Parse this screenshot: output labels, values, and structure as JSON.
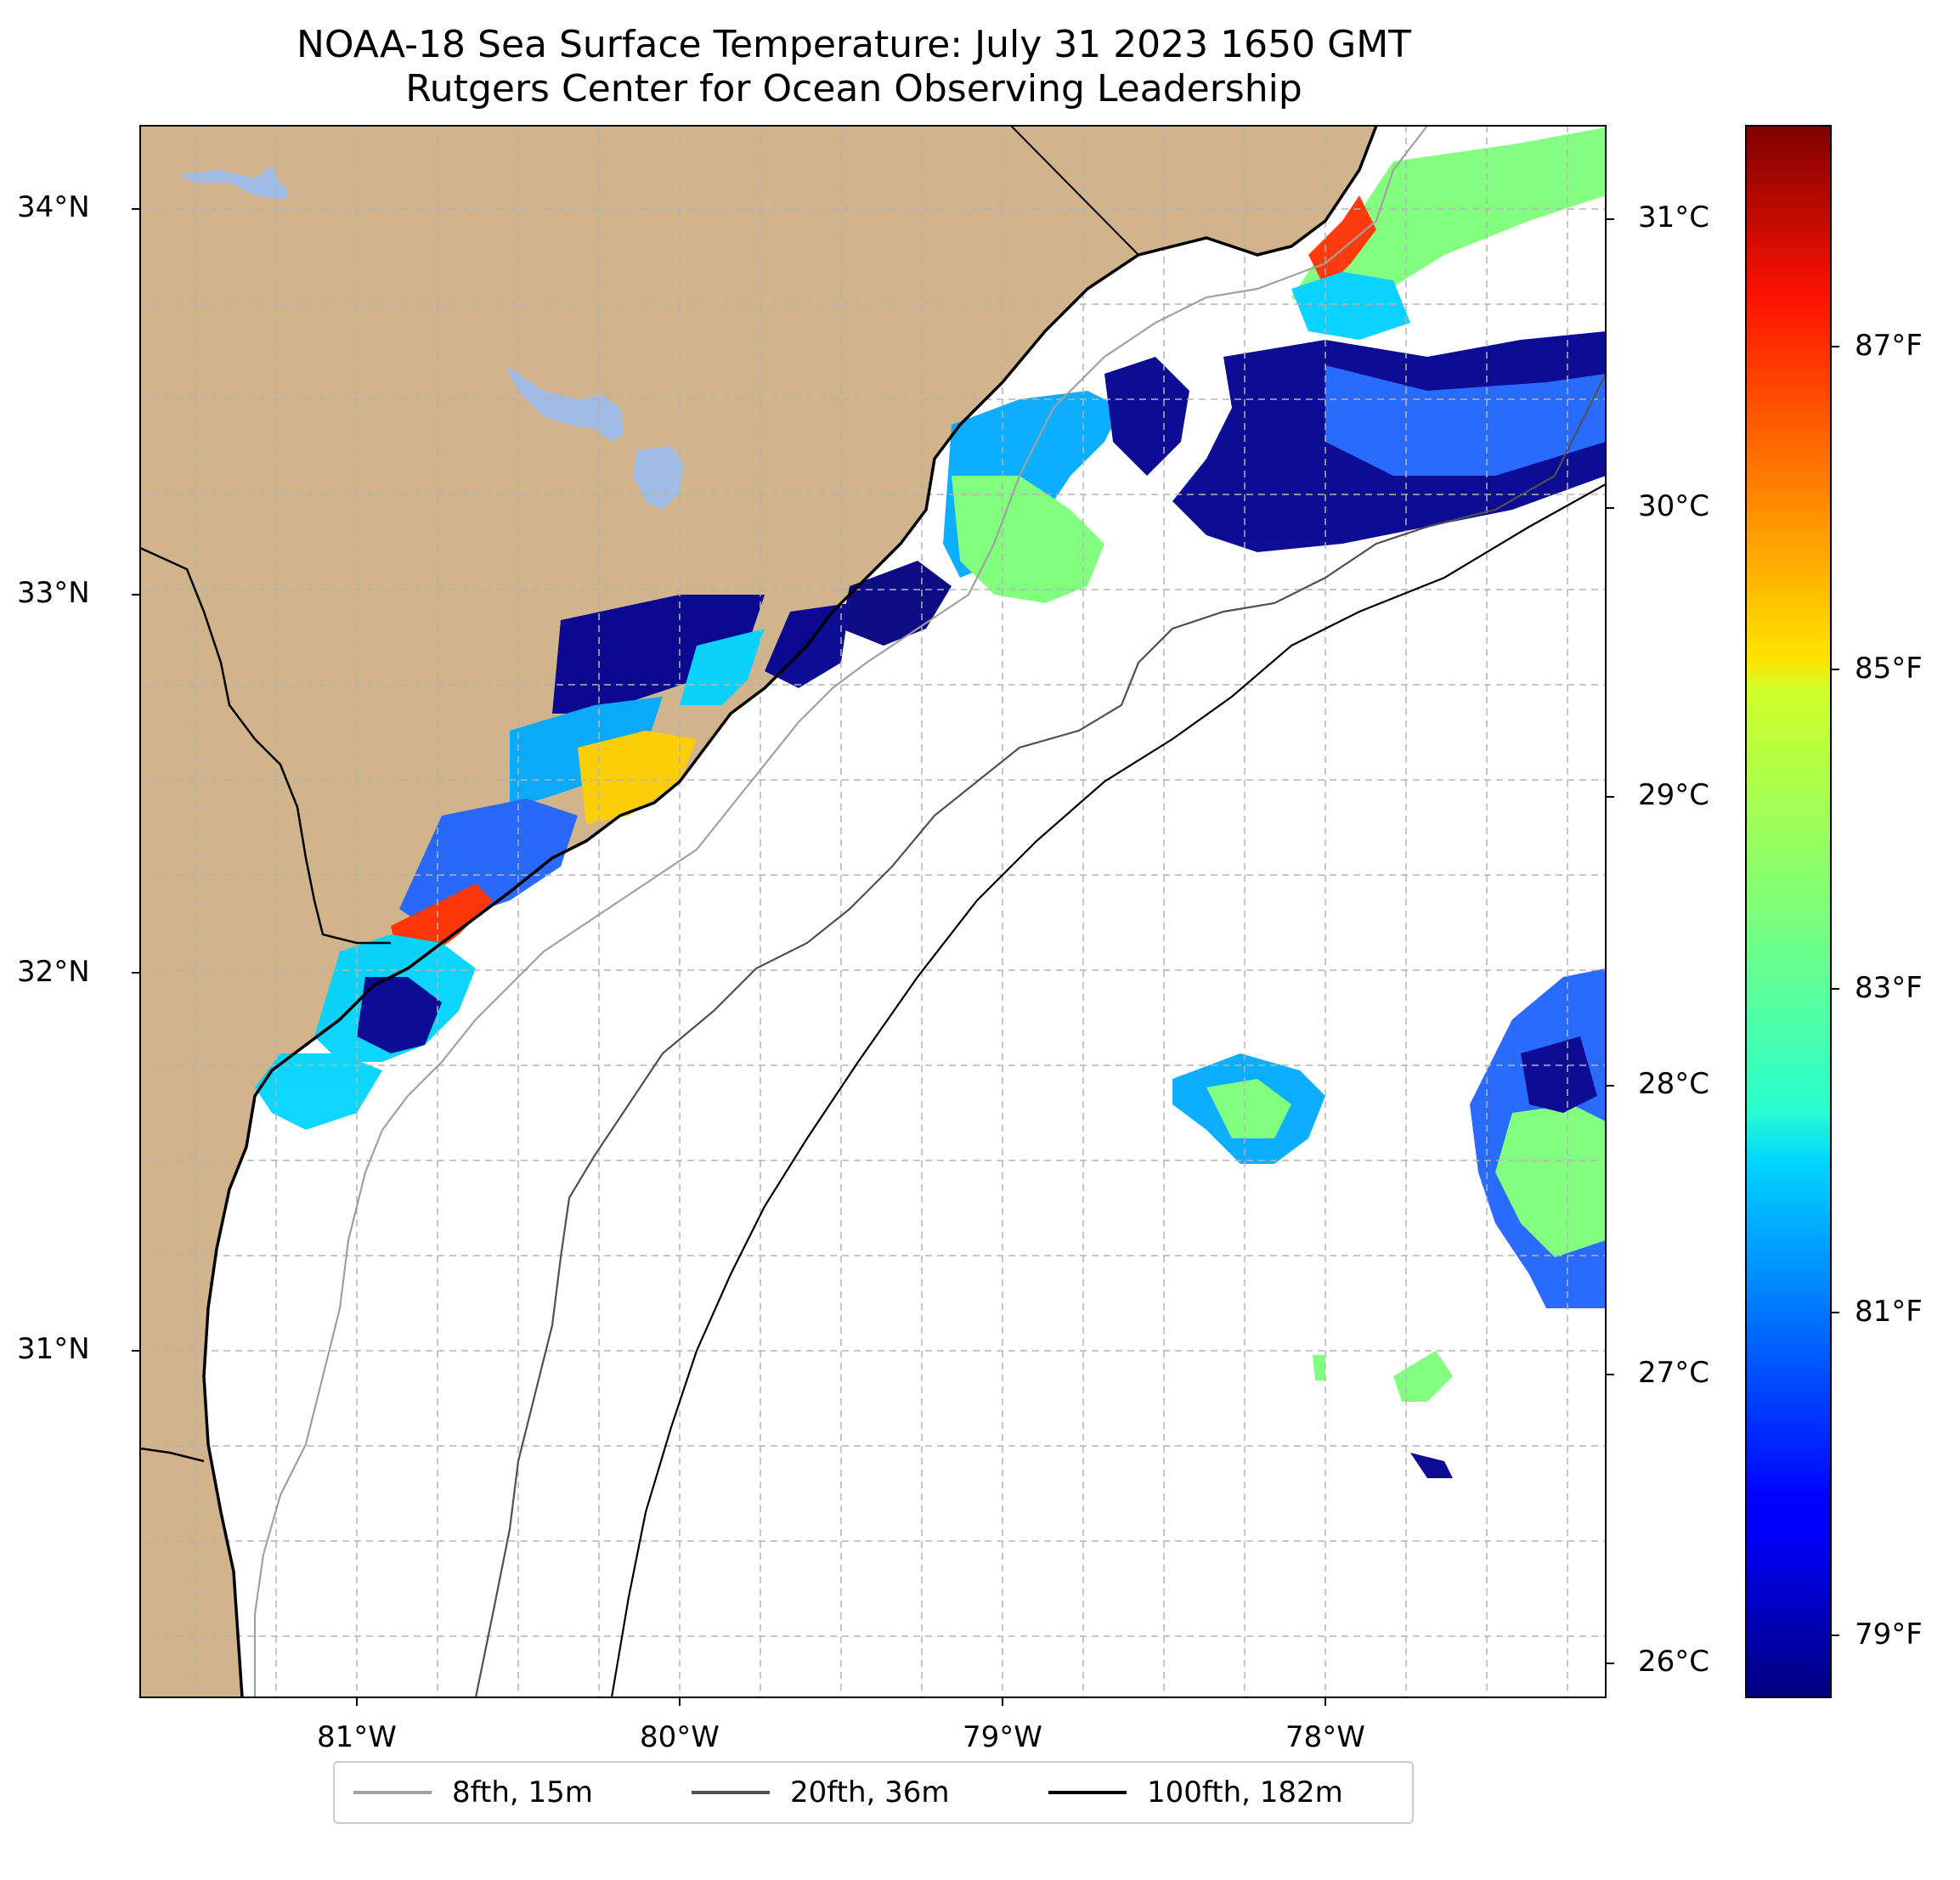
{
  "title_line1": "NOAA-18 Sea Surface Temperature: July 31 2023 1650 GMT",
  "title_line2": "Rutgers Center for Ocean Observing Leadership",
  "lat_labels": [
    "34°N",
    "33°N",
    "32°N",
    "31°N"
  ],
  "lon_labels": [
    "81°W",
    "80°W",
    "79°W",
    "78°W"
  ],
  "colorbar": {
    "celsius_labels": [
      "31°C",
      "30°C",
      "29°C",
      "28°C",
      "27°C",
      "26°C"
    ],
    "fahrenheit_labels": [
      "87°F",
      "85°F",
      "83°F",
      "81°F",
      "79°F"
    ],
    "colormap": "jet"
  },
  "legend": {
    "items": [
      {
        "label": "8fth, 15m",
        "color": "#a0a0a0"
      },
      {
        "label": "20fth, 36m",
        "color": "#505050"
      },
      {
        "label": "100fth, 182m",
        "color": "#000000"
      }
    ]
  },
  "colors": {
    "land": "#d2b48c",
    "lakes": "#a0bce6",
    "ocean": "#ffffff"
  }
}
